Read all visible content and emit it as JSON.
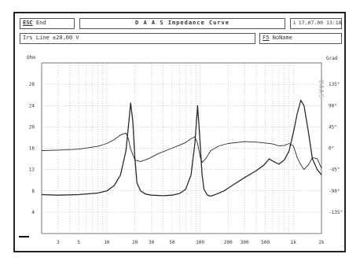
{
  "header": {
    "esc_key": "ESC",
    "esc_label": "End",
    "title": "D A A S  Impedance Curve",
    "date_icon": "cursor-bar-icon",
    "date": "17.07.00 13:18"
  },
  "subheader": {
    "line_info": "Irs Line  ±20.00 V",
    "fn_key": "F5",
    "fn_label": "NoName"
  },
  "watermark": "DAAS",
  "colors": {
    "frame": "#222222",
    "grid": "#9a9a9a",
    "curve": "#2a2a2a",
    "text": "#333333"
  },
  "chart_data": {
    "type": "line",
    "x_scale": "log",
    "xlim": [
      2,
      2000
    ],
    "x_ticks": [
      {
        "value": 3,
        "label": "3"
      },
      {
        "value": 5,
        "label": "5"
      },
      {
        "value": 10,
        "label": "10"
      },
      {
        "value": 20,
        "label": "20"
      },
      {
        "value": 30,
        "label": "30"
      },
      {
        "value": 50,
        "label": "50"
      },
      {
        "value": 100,
        "label": "100"
      },
      {
        "value": 200,
        "label": "200"
      },
      {
        "value": 300,
        "label": "300"
      },
      {
        "value": 500,
        "label": "500"
      },
      {
        "value": 1000,
        "label": "1k"
      },
      {
        "value": 2000,
        "label": "2k"
      }
    ],
    "y_left": {
      "unit": "Ohm",
      "ylim": [
        0,
        32
      ],
      "ticks": [
        {
          "value": 4,
          "label": "4"
        },
        {
          "value": 8,
          "label": "8"
        },
        {
          "value": 12,
          "label": "12"
        },
        {
          "value": 16,
          "label": "16"
        },
        {
          "value": 20,
          "label": "20"
        },
        {
          "value": 24,
          "label": "24"
        },
        {
          "value": 28,
          "label": "28"
        }
      ]
    },
    "y_right": {
      "unit": "Grad",
      "ylim": [
        -180,
        180
      ],
      "ticks": [
        {
          "value": 135,
          "label": "135°"
        },
        {
          "value": 90,
          "label": "90°"
        },
        {
          "value": 45,
          "label": "45°"
        },
        {
          "value": 0,
          "label": "0°"
        },
        {
          "value": -45,
          "label": "-45°"
        },
        {
          "value": -90,
          "label": "-90°"
        },
        {
          "value": -135,
          "label": "-135°"
        }
      ]
    },
    "grid": true,
    "series": [
      {
        "axis": "left",
        "points": [
          [
            2,
            7.3
          ],
          [
            3,
            7.2
          ],
          [
            5,
            7.3
          ],
          [
            8,
            7.6
          ],
          [
            10,
            8.0
          ],
          [
            12,
            9.0
          ],
          [
            14,
            11.0
          ],
          [
            16,
            15.5
          ],
          [
            17,
            20.0
          ],
          [
            18,
            24.5
          ],
          [
            19,
            21.0
          ],
          [
            20,
            14.0
          ],
          [
            21,
            9.5
          ],
          [
            23,
            8.0
          ],
          [
            26,
            7.4
          ],
          [
            30,
            7.2
          ],
          [
            40,
            7.1
          ],
          [
            50,
            7.2
          ],
          [
            60,
            7.5
          ],
          [
            70,
            8.3
          ],
          [
            80,
            11.0
          ],
          [
            88,
            17.0
          ],
          [
            94,
            24.0
          ],
          [
            100,
            17.0
          ],
          [
            105,
            11.0
          ],
          [
            110,
            8.3
          ],
          [
            120,
            7.2
          ],
          [
            130,
            7.0
          ],
          [
            150,
            7.4
          ],
          [
            180,
            8.0
          ],
          [
            220,
            9.0
          ],
          [
            300,
            10.5
          ],
          [
            400,
            11.8
          ],
          [
            480,
            12.8
          ],
          [
            550,
            14.0
          ],
          [
            600,
            13.6
          ],
          [
            700,
            13.0
          ],
          [
            800,
            13.8
          ],
          [
            900,
            15.5
          ],
          [
            1000,
            19.0
          ],
          [
            1100,
            22.5
          ],
          [
            1200,
            25.0
          ],
          [
            1300,
            24.0
          ],
          [
            1450,
            19.0
          ],
          [
            1600,
            14.0
          ],
          [
            1800,
            12.0
          ],
          [
            2000,
            11.0
          ]
        ]
      },
      {
        "axis": "right",
        "points": [
          [
            2,
            -5
          ],
          [
            3,
            -4
          ],
          [
            5,
            -2
          ],
          [
            8,
            4
          ],
          [
            10,
            10
          ],
          [
            12,
            18
          ],
          [
            14,
            28
          ],
          [
            16,
            32
          ],
          [
            17,
            20
          ],
          [
            18,
            -2
          ],
          [
            20,
            -25
          ],
          [
            23,
            -28
          ],
          [
            28,
            -22
          ],
          [
            35,
            -12
          ],
          [
            50,
            0
          ],
          [
            70,
            12
          ],
          [
            80,
            20
          ],
          [
            88,
            24
          ],
          [
            94,
            10
          ],
          [
            100,
            -18
          ],
          [
            105,
            -30
          ],
          [
            115,
            -22
          ],
          [
            130,
            -5
          ],
          [
            160,
            5
          ],
          [
            200,
            10
          ],
          [
            300,
            14
          ],
          [
            400,
            13
          ],
          [
            500,
            11
          ],
          [
            600,
            9
          ],
          [
            700,
            5
          ],
          [
            800,
            6
          ],
          [
            900,
            10
          ],
          [
            1000,
            5
          ],
          [
            1100,
            -20
          ],
          [
            1200,
            -35
          ],
          [
            1300,
            -45
          ],
          [
            1450,
            -35
          ],
          [
            1600,
            -20
          ],
          [
            1800,
            -22
          ],
          [
            2000,
            -42
          ]
        ]
      }
    ]
  }
}
